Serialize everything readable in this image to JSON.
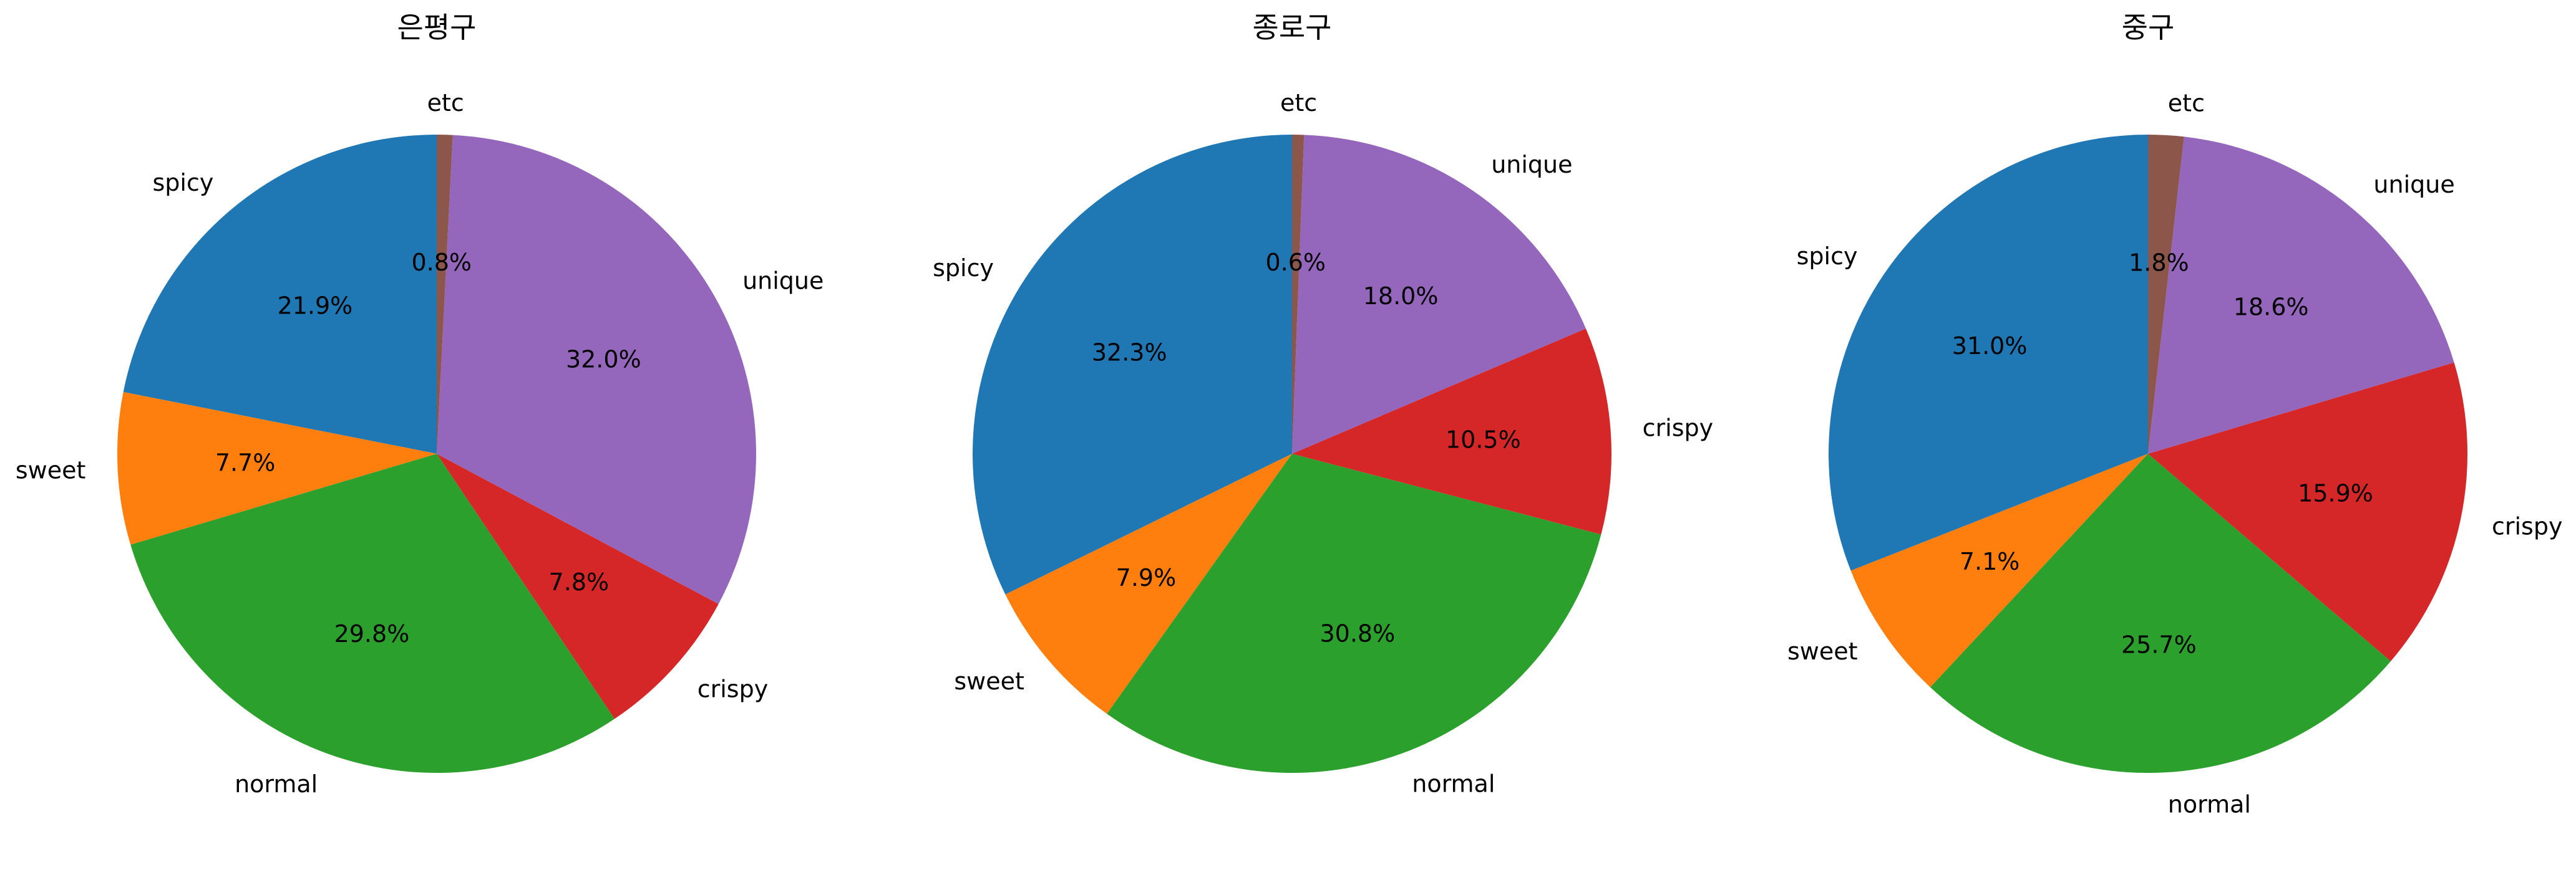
{
  "chart_data": [
    {
      "type": "pie",
      "title": "은평구",
      "slices": [
        {
          "label": "spicy",
          "value": 21.9,
          "pct_text": "21.9%",
          "color": "#1f77b4"
        },
        {
          "label": "sweet",
          "value": 7.7,
          "pct_text": "7.7%",
          "color": "#ff7f0e"
        },
        {
          "label": "normal",
          "value": 29.8,
          "pct_text": "29.8%",
          "color": "#2ca02c"
        },
        {
          "label": "crispy",
          "value": 7.8,
          "pct_text": "7.8%",
          "color": "#d62728"
        },
        {
          "label": "unique",
          "value": 32.0,
          "pct_text": "32.0%",
          "color": "#9467bd"
        },
        {
          "label": "etc",
          "value": 0.8,
          "pct_text": "0.8%",
          "color": "#8c564b"
        }
      ]
    },
    {
      "type": "pie",
      "title": "종로구",
      "slices": [
        {
          "label": "spicy",
          "value": 32.3,
          "pct_text": "32.3%",
          "color": "#1f77b4"
        },
        {
          "label": "sweet",
          "value": 7.9,
          "pct_text": "7.9%",
          "color": "#ff7f0e"
        },
        {
          "label": "normal",
          "value": 30.8,
          "pct_text": "30.8%",
          "color": "#2ca02c"
        },
        {
          "label": "crispy",
          "value": 10.5,
          "pct_text": "10.5%",
          "color": "#d62728"
        },
        {
          "label": "unique",
          "value": 18.0,
          "pct_text": "18.0%",
          "color": "#9467bd"
        },
        {
          "label": "etc",
          "value": 0.6,
          "pct_text": "0.6%",
          "color": "#8c564b"
        }
      ]
    },
    {
      "type": "pie",
      "title": "중구",
      "slices": [
        {
          "label": "spicy",
          "value": 31.0,
          "pct_text": "31.0%",
          "color": "#1f77b4"
        },
        {
          "label": "sweet",
          "value": 7.1,
          "pct_text": "7.1%",
          "color": "#ff7f0e"
        },
        {
          "label": "normal",
          "value": 25.7,
          "pct_text": "25.7%",
          "color": "#2ca02c"
        },
        {
          "label": "crispy",
          "value": 15.9,
          "pct_text": "15.9%",
          "color": "#d62728"
        },
        {
          "label": "unique",
          "value": 18.6,
          "pct_text": "18.6%",
          "color": "#9467bd"
        },
        {
          "label": "etc",
          "value": 1.8,
          "pct_text": "1.8%",
          "color": "#8c564b"
        }
      ]
    }
  ]
}
